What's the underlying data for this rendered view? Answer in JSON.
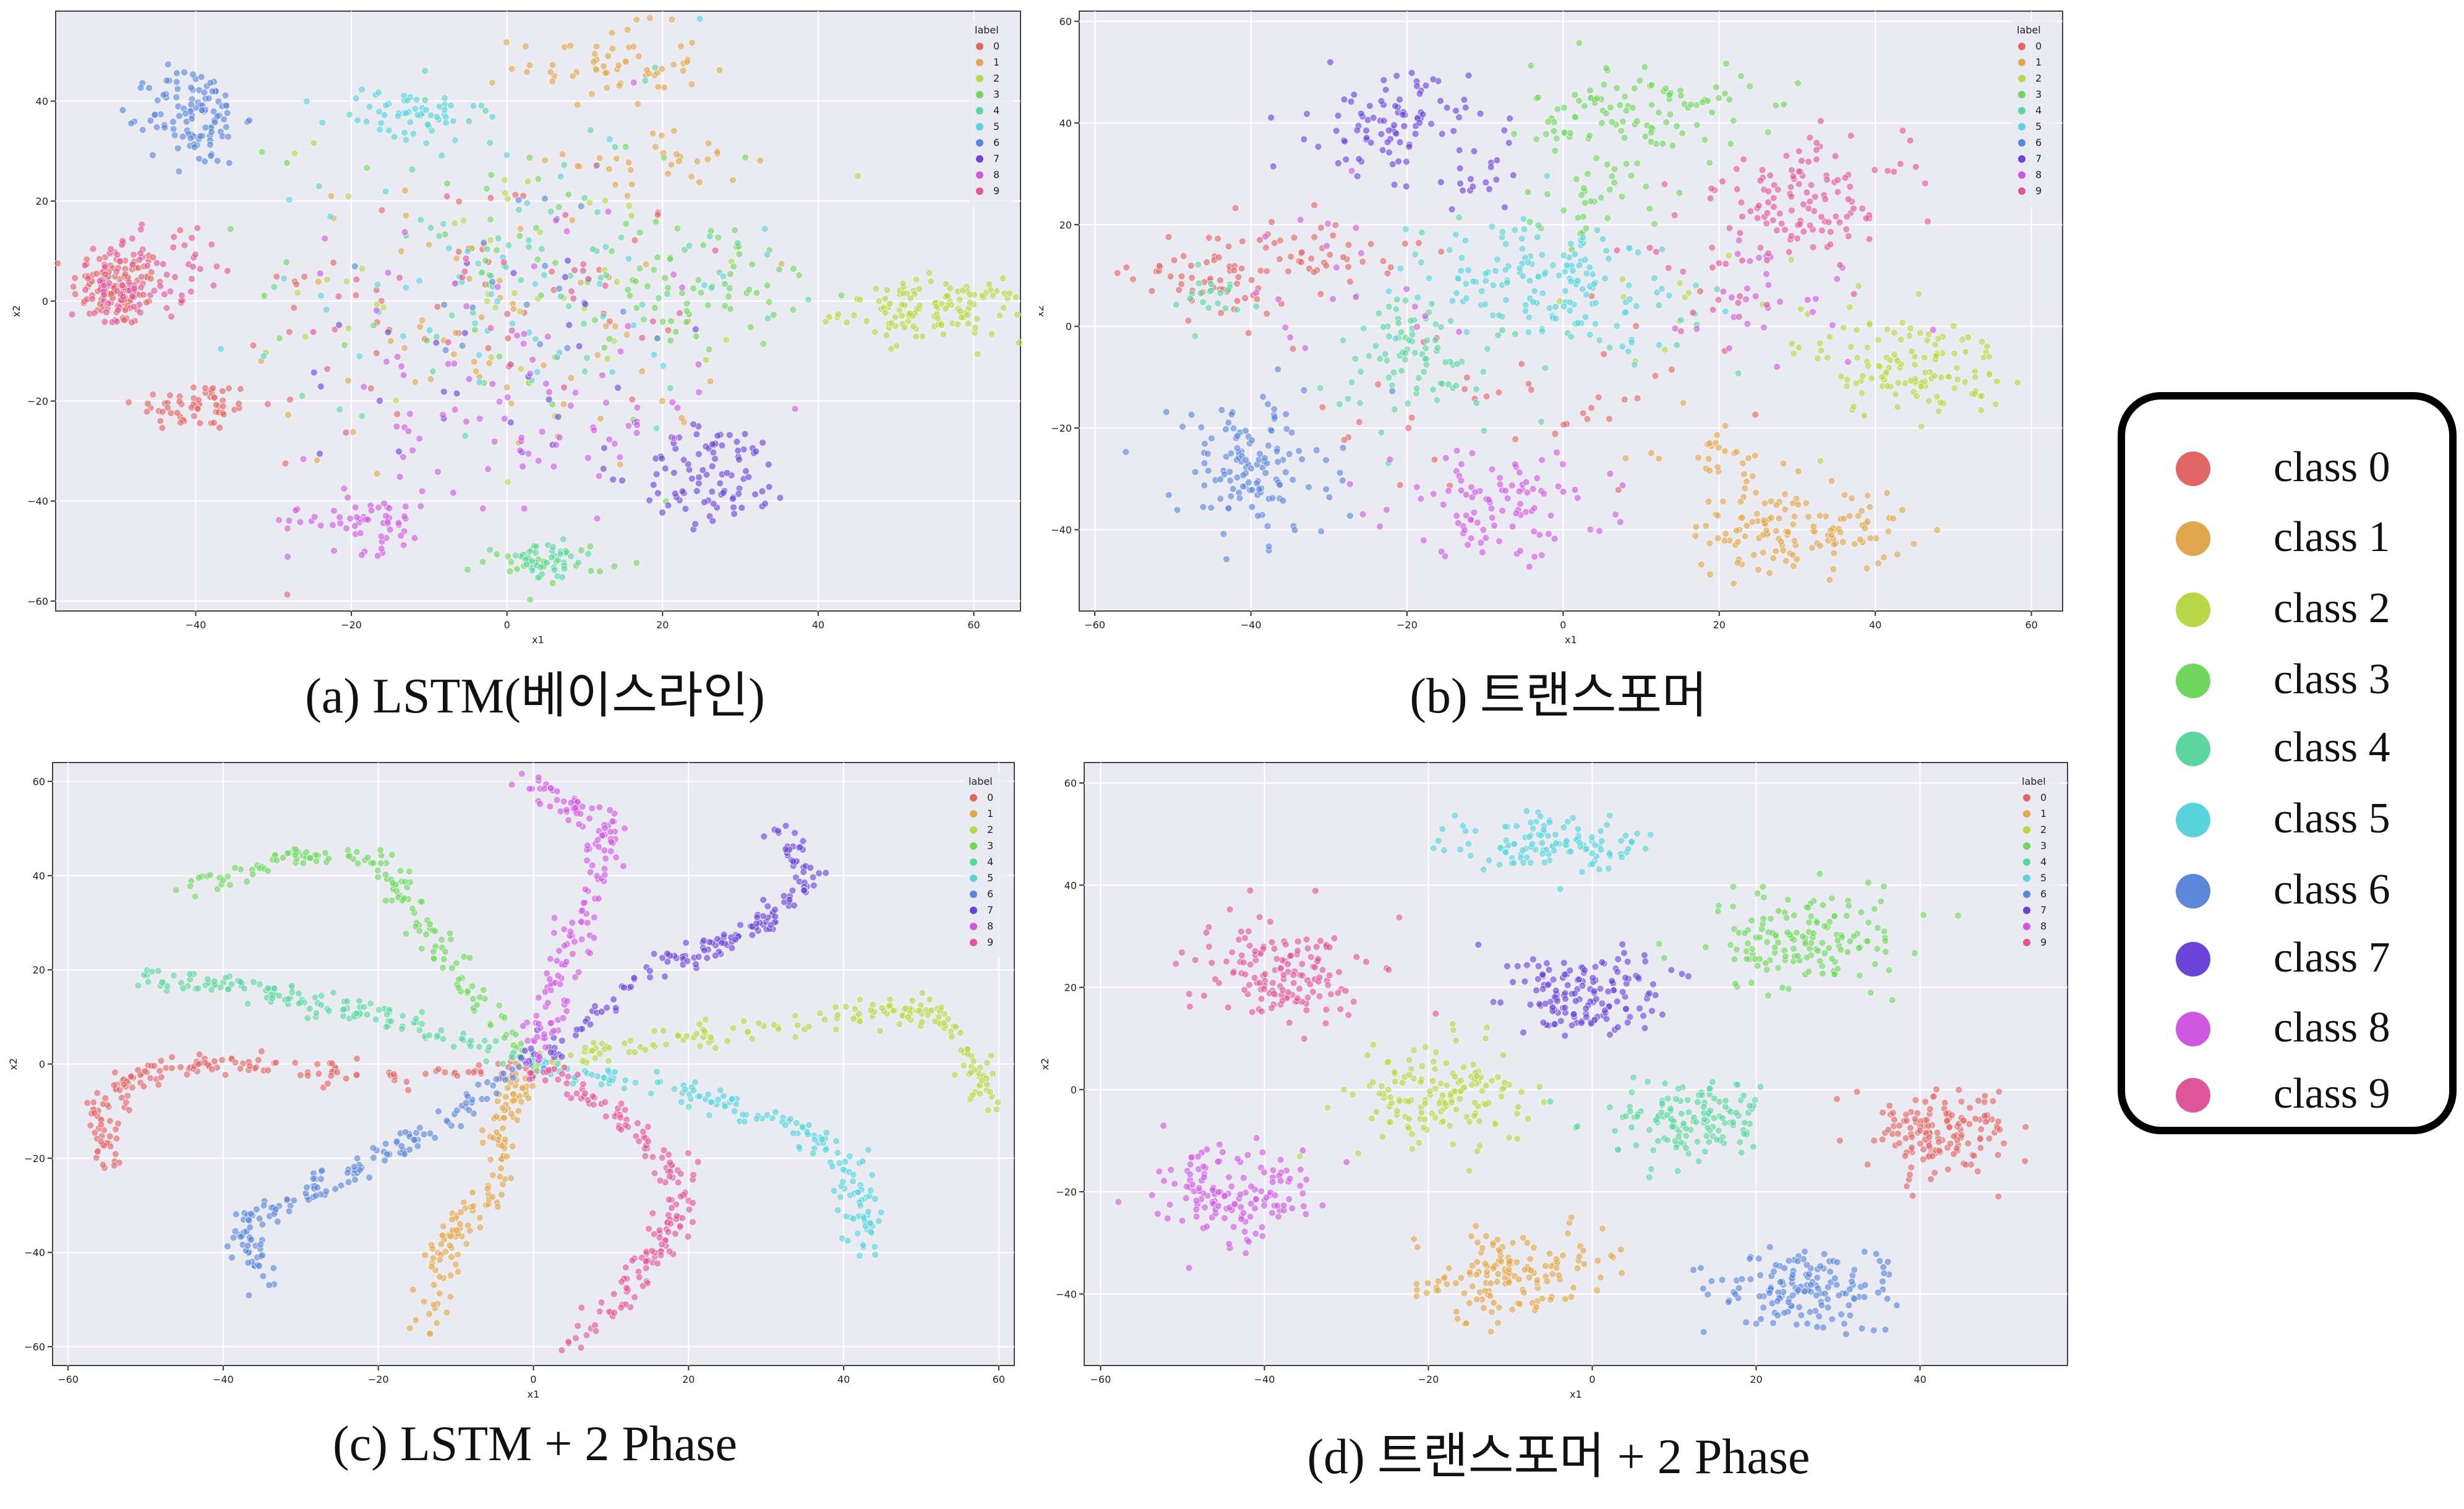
{
  "class_colors": [
    "#e06666",
    "#e0a84e",
    "#b8d84a",
    "#6fd65e",
    "#5cd6a0",
    "#5ad3dc",
    "#5b86d9",
    "#6a44d6",
    "#cf58e0",
    "#e0569a"
  ],
  "big_legend": {
    "items": [
      "class 0",
      "class 1",
      "class 2",
      "class 3",
      "class 4",
      "class 5",
      "class 6",
      "class 7",
      "class 8",
      "class 9"
    ]
  },
  "chart_data": [
    {
      "type": "scatter",
      "caption": "(a) LSTM(베이스라인)",
      "xlabel": "x1",
      "ylabel": "x2",
      "xlim": [
        -58,
        66
      ],
      "ylim": [
        -62,
        58
      ],
      "xticks": [
        -40,
        -20,
        0,
        20,
        40,
        60
      ],
      "yticks": [
        -60,
        -40,
        -20,
        0,
        20,
        40
      ],
      "grid": true,
      "legend_title": "label",
      "legend_labels": [
        "0",
        "1",
        "2",
        "3",
        "4",
        "5",
        "6",
        "7",
        "8",
        "9"
      ],
      "legend_position": "top-right",
      "clusters": [
        {
          "label": 0,
          "x": -50,
          "y": 3,
          "sx": 3,
          "sy": 4,
          "n": 110
        },
        {
          "label": 0,
          "x": -40,
          "y": -21,
          "sx": 4,
          "sy": 2.5,
          "n": 60
        },
        {
          "label": 0,
          "x": -5,
          "y": 0,
          "sx": 15,
          "sy": 14,
          "n": 50
        },
        {
          "label": 1,
          "x": 13,
          "y": 47,
          "sx": 6,
          "sy": 4,
          "n": 60
        },
        {
          "label": 1,
          "x": 20,
          "y": 28,
          "sx": 6,
          "sy": 3,
          "n": 30
        },
        {
          "label": 1,
          "x": 0,
          "y": -5,
          "sx": 15,
          "sy": 15,
          "n": 60
        },
        {
          "label": 2,
          "x": 55,
          "y": -2,
          "sx": 6,
          "sy": 3,
          "n": 130
        },
        {
          "label": 2,
          "x": 0,
          "y": 5,
          "sx": 15,
          "sy": 15,
          "n": 50
        },
        {
          "label": 3,
          "x": 25,
          "y": 2,
          "sx": 6,
          "sy": 6,
          "n": 60
        },
        {
          "label": 3,
          "x": 5,
          "y": -52,
          "sx": 4,
          "sy": 2,
          "n": 30
        },
        {
          "label": 3,
          "x": 0,
          "y": 5,
          "sx": 15,
          "sy": 15,
          "n": 50
        },
        {
          "label": 4,
          "x": 5,
          "y": -52,
          "sx": 3,
          "sy": 2,
          "n": 40
        },
        {
          "label": 4,
          "x": 5,
          "y": 10,
          "sx": 15,
          "sy": 15,
          "n": 60
        },
        {
          "label": 5,
          "x": -13,
          "y": 37,
          "sx": 5,
          "sy": 3,
          "n": 60
        },
        {
          "label": 5,
          "x": 0,
          "y": 5,
          "sx": 15,
          "sy": 15,
          "n": 60
        },
        {
          "label": 6,
          "x": -40,
          "y": 37,
          "sx": 3,
          "sy": 5,
          "n": 110
        },
        {
          "label": 6,
          "x": 0,
          "y": 0,
          "sx": 15,
          "sy": 15,
          "n": 20
        },
        {
          "label": 7,
          "x": 27,
          "y": -35,
          "sx": 5,
          "sy": 5,
          "n": 90
        },
        {
          "label": 7,
          "x": 0,
          "y": -10,
          "sx": 15,
          "sy": 15,
          "n": 30
        },
        {
          "label": 8,
          "x": -18,
          "y": -44,
          "sx": 5,
          "sy": 3,
          "n": 60
        },
        {
          "label": 8,
          "x": 5,
          "y": -25,
          "sx": 10,
          "sy": 8,
          "n": 60
        },
        {
          "label": 8,
          "x": 0,
          "y": 5,
          "sx": 15,
          "sy": 15,
          "n": 30
        },
        {
          "label": 9,
          "x": -50,
          "y": 2,
          "sx": 3,
          "sy": 4,
          "n": 70
        },
        {
          "label": 9,
          "x": -42,
          "y": 8,
          "sx": 4,
          "sy": 4,
          "n": 30
        },
        {
          "label": 9,
          "x": 0,
          "y": 0,
          "sx": 15,
          "sy": 15,
          "n": 30
        }
      ]
    },
    {
      "type": "scatter",
      "caption": "(b) 트랜스포머",
      "xlabel": "x1",
      "ylabel": "x2",
      "xlim": [
        -62,
        64
      ],
      "ylim": [
        -56,
        62
      ],
      "xticks": [
        -60,
        -40,
        -20,
        0,
        20,
        40,
        60
      ],
      "yticks": [
        -40,
        -20,
        0,
        20,
        40,
        60
      ],
      "grid": true,
      "legend_title": "label",
      "legend_labels": [
        "0",
        "1",
        "2",
        "3",
        "4",
        "5",
        "6",
        "7",
        "8",
        "9"
      ],
      "legend_position": "top-right",
      "clusters": [
        {
          "label": 0,
          "x": -45,
          "y": 10,
          "sx": 5,
          "sy": 5,
          "n": 60
        },
        {
          "label": 0,
          "x": -30,
          "y": 15,
          "sx": 5,
          "sy": 4,
          "n": 40
        },
        {
          "label": 0,
          "x": -5,
          "y": -18,
          "sx": 15,
          "sy": 10,
          "n": 40
        },
        {
          "label": 1,
          "x": 30,
          "y": -40,
          "sx": 7,
          "sy": 4,
          "n": 130
        },
        {
          "label": 1,
          "x": 20,
          "y": -25,
          "sx": 4,
          "sy": 4,
          "n": 30
        },
        {
          "label": 2,
          "x": 45,
          "y": -8,
          "sx": 6,
          "sy": 5,
          "n": 120
        },
        {
          "label": 2,
          "x": 20,
          "y": 0,
          "sx": 10,
          "sy": 10,
          "n": 20
        },
        {
          "label": 3,
          "x": 10,
          "y": 42,
          "sx": 7,
          "sy": 5,
          "n": 110
        },
        {
          "label": 3,
          "x": 5,
          "y": 25,
          "sx": 5,
          "sy": 4,
          "n": 30
        },
        {
          "label": 4,
          "x": -20,
          "y": -5,
          "sx": 5,
          "sy": 6,
          "n": 80
        },
        {
          "label": 4,
          "x": -45,
          "y": 5,
          "sx": 4,
          "sy": 3,
          "n": 20
        },
        {
          "label": 4,
          "x": 0,
          "y": 0,
          "sx": 15,
          "sy": 12,
          "n": 20
        },
        {
          "label": 5,
          "x": 0,
          "y": 8,
          "sx": 8,
          "sy": 6,
          "n": 140
        },
        {
          "label": 5,
          "x": -10,
          "y": 15,
          "sx": 6,
          "sy": 5,
          "n": 20
        },
        {
          "label": 6,
          "x": -40,
          "y": -28,
          "sx": 5,
          "sy": 7,
          "n": 130
        },
        {
          "label": 7,
          "x": -22,
          "y": 40,
          "sx": 5,
          "sy": 5,
          "n": 90
        },
        {
          "label": 7,
          "x": -10,
          "y": 30,
          "sx": 4,
          "sy": 4,
          "n": 20
        },
        {
          "label": 8,
          "x": -8,
          "y": -35,
          "sx": 7,
          "sy": 5,
          "n": 100
        },
        {
          "label": 8,
          "x": 25,
          "y": 5,
          "sx": 10,
          "sy": 10,
          "n": 30
        },
        {
          "label": 8,
          "x": -30,
          "y": 5,
          "sx": 10,
          "sy": 10,
          "n": 20
        },
        {
          "label": 9,
          "x": 32,
          "y": 25,
          "sx": 6,
          "sy": 6,
          "n": 110
        },
        {
          "label": 9,
          "x": 20,
          "y": 15,
          "sx": 6,
          "sy": 6,
          "n": 30
        }
      ]
    },
    {
      "type": "scatter",
      "caption": "(c) LSTM + 2 Phase",
      "xlabel": "x1",
      "ylabel": "x2",
      "xlim": [
        -62,
        62
      ],
      "ylim": [
        -64,
        64
      ],
      "xticks": [
        -60,
        -40,
        -20,
        0,
        20,
        40,
        60
      ],
      "yticks": [
        -60,
        -40,
        -20,
        0,
        20,
        40,
        60
      ],
      "grid": true,
      "legend_title": "label",
      "legend_labels": [
        "0",
        "1",
        "2",
        "3",
        "4",
        "5",
        "6",
        "7",
        "8",
        "9"
      ],
      "legend_position": "top-right",
      "arms": [
        {
          "label": 0,
          "pts": [
            [
              0,
              0
            ],
            [
              -20,
              -3
            ],
            [
              -40,
              0
            ],
            [
              -50,
              -2
            ],
            [
              -56,
              -10
            ],
            [
              -55,
              -22
            ]
          ],
          "n": 170,
          "w": 1.2
        },
        {
          "label": 1,
          "pts": [
            [
              0,
              0
            ],
            [
              -4,
              -12
            ],
            [
              -6,
              -28
            ],
            [
              -12,
              -40
            ],
            [
              -14,
              -58
            ]
          ],
          "n": 150,
          "w": 1.2
        },
        {
          "label": 2,
          "pts": [
            [
              0,
              0
            ],
            [
              20,
              6
            ],
            [
              40,
              10
            ],
            [
              50,
              12
            ],
            [
              56,
              5
            ],
            [
              58,
              -10
            ]
          ],
          "n": 170,
          "w": 1.2
        },
        {
          "label": 3,
          "pts": [
            [
              0,
              0
            ],
            [
              -10,
              18
            ],
            [
              -16,
              35
            ],
            [
              -20,
              44
            ],
            [
              -32,
              44
            ],
            [
              -45,
              37
            ]
          ],
          "n": 150,
          "w": 1.2
        },
        {
          "label": 4,
          "pts": [
            [
              0,
              0
            ],
            [
              -15,
              8
            ],
            [
              -30,
              14
            ],
            [
              -40,
              17
            ],
            [
              -52,
              18
            ]
          ],
          "n": 150,
          "w": 1.2
        },
        {
          "label": 5,
          "pts": [
            [
              0,
              0
            ],
            [
              18,
              -5
            ],
            [
              32,
              -12
            ],
            [
              40,
              -20
            ],
            [
              42,
              -30
            ],
            [
              42,
              -40
            ]
          ],
          "n": 170,
          "w": 1.2
        },
        {
          "label": 6,
          "pts": [
            [
              0,
              0
            ],
            [
              -10,
              -10
            ],
            [
              -20,
              -20
            ],
            [
              -30,
              -28
            ],
            [
              -38,
              -34
            ],
            [
              -34,
              -48
            ]
          ],
          "n": 160,
          "w": 1.2
        },
        {
          "label": 7,
          "pts": [
            [
              0,
              0
            ],
            [
              15,
              20
            ],
            [
              28,
              28
            ],
            [
              36,
              38
            ],
            [
              32,
              50
            ]
          ],
          "n": 160,
          "w": 1.2
        },
        {
          "label": 8,
          "pts": [
            [
              0,
              0
            ],
            [
              4,
              20
            ],
            [
              8,
              38
            ],
            [
              10,
              50
            ],
            [
              0,
              60
            ]
          ],
          "n": 160,
          "w": 1.2
        },
        {
          "label": 9,
          "pts": [
            [
              0,
              0
            ],
            [
              12,
              -12
            ],
            [
              20,
              -25
            ],
            [
              16,
              -40
            ],
            [
              5,
              -60
            ]
          ],
          "n": 170,
          "w": 1.2
        }
      ]
    },
    {
      "type": "scatter",
      "caption": "(d) 트랜스포머 + 2 Phase",
      "xlabel": "x1",
      "ylabel": "x2",
      "xlim": [
        -62,
        58
      ],
      "ylim": [
        -54,
        64
      ],
      "xticks": [
        -60,
        -40,
        -20,
        0,
        20,
        40
      ],
      "yticks": [
        -40,
        -20,
        0,
        20,
        40,
        60
      ],
      "grid": true,
      "legend_title": "label",
      "legend_labels": [
        "0",
        "1",
        "2",
        "3",
        "4",
        "5",
        "6",
        "7",
        "8",
        "9"
      ],
      "legend_position": "top-right",
      "clusters": [
        {
          "label": 0,
          "x": 42,
          "y": -8,
          "sx": 5,
          "sy": 4,
          "n": 150
        },
        {
          "label": 1,
          "x": -10,
          "y": -36,
          "sx": 6,
          "sy": 4,
          "n": 150
        },
        {
          "label": 2,
          "x": -18,
          "y": -2,
          "sx": 5,
          "sy": 5,
          "n": 150
        },
        {
          "label": 3,
          "x": 27,
          "y": 29,
          "sx": 6,
          "sy": 5,
          "n": 150
        },
        {
          "label": 4,
          "x": 12,
          "y": -6,
          "sx": 5,
          "sy": 4,
          "n": 140
        },
        {
          "label": 5,
          "x": -5,
          "y": 48,
          "sx": 6,
          "sy": 3,
          "n": 120
        },
        {
          "label": 6,
          "x": 25,
          "y": -39,
          "sx": 6,
          "sy": 4,
          "n": 150
        },
        {
          "label": 7,
          "x": -1,
          "y": 19,
          "sx": 5,
          "sy": 4,
          "n": 150
        },
        {
          "label": 8,
          "x": -44,
          "y": -20,
          "sx": 5,
          "sy": 5,
          "n": 140
        },
        {
          "label": 9,
          "x": -38,
          "y": 23,
          "sx": 5,
          "sy": 5,
          "n": 150
        }
      ]
    }
  ]
}
